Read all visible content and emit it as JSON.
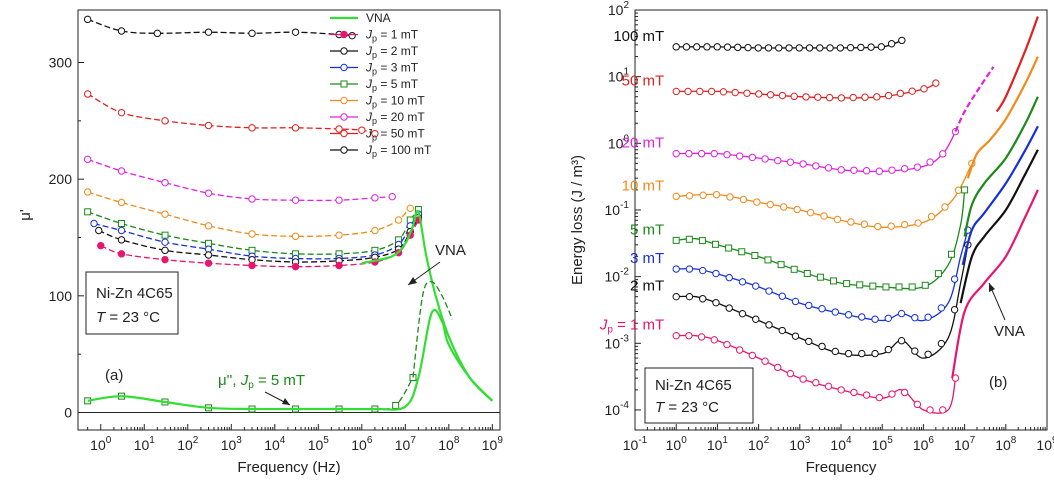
{
  "chart_data": [
    {
      "type": "line",
      "panel_label": "(a)",
      "xlabel": "Frequency (Hz)",
      "ylabel": "μ'",
      "xscale": "log",
      "xlim": [
        0.3,
        1500000000
      ],
      "ylim": [
        -15,
        345
      ],
      "x_ticks": [
        1,
        10,
        100,
        1000,
        10000,
        100000,
        1000000,
        10000000,
        100000000,
        1000000000
      ],
      "x_tick_labels": [
        {
          "base": "10",
          "exp": "0"
        },
        {
          "base": "10",
          "exp": "1"
        },
        {
          "base": "10",
          "exp": "2"
        },
        {
          "base": "10",
          "exp": "3"
        },
        {
          "base": "10",
          "exp": "4"
        },
        {
          "base": "10",
          "exp": "5"
        },
        {
          "base": "10",
          "exp": "6"
        },
        {
          "base": "10",
          "exp": "7"
        },
        {
          "base": "10",
          "exp": "8"
        },
        {
          "base": "10",
          "exp": "9"
        }
      ],
      "y_ticks": [
        0,
        100,
        200,
        300
      ],
      "y_tick_labels": [
        "0",
        "100",
        "200",
        "300"
      ],
      "legend": {
        "position": "top-right",
        "entries": [
          {
            "pre": "VNA",
            "sub": "",
            "post": "",
            "color": "#33dd33",
            "marker": "none"
          },
          {
            "pre": "J",
            "sub": "p",
            "post": " = 1 mT",
            "color": "#e8156f",
            "marker": "filled"
          },
          {
            "pre": "J",
            "sub": "p",
            "post": " = 2 mT",
            "color": "#111111",
            "marker": "open"
          },
          {
            "pre": "J",
            "sub": "p",
            "post": " = 3 mT",
            "color": "#1530d8",
            "marker": "open"
          },
          {
            "pre": "J",
            "sub": "p",
            "post": " = 5 mT",
            "color": "#1a8a1a",
            "marker": "square"
          },
          {
            "pre": "J",
            "sub": "p",
            "post": " = 10 mT",
            "color": "#f08a1a",
            "marker": "open"
          },
          {
            "pre": "J",
            "sub": "p",
            "post": " = 20 mT",
            "color": "#e020e0",
            "marker": "open"
          },
          {
            "pre": "J",
            "sub": "p",
            "post": " = 50 mT",
            "color": "#e02020",
            "marker": "open"
          },
          {
            "pre": "J",
            "sub": "p",
            "post": " = 100 mT",
            "color": "#111111",
            "marker": "open"
          }
        ]
      },
      "annotations": {
        "box_line1": "Ni-Zn 4C65",
        "box_T": "T",
        "box_rest": " = 23 °C",
        "vna_label": "VNA",
        "mu2_pre": "μ'', ",
        "mu2_J": "J",
        "mu2_sub": "p",
        "mu2_post": " = 5 mT"
      },
      "series": [
        {
          "legend": "Jp = 100 mT",
          "color": "#111111",
          "marker": "open",
          "x": [
            0.5,
            3,
            20,
            300,
            3000,
            30000,
            300000,
            600000
          ],
          "y": [
            337,
            327,
            325,
            326,
            325,
            326,
            324,
            323
          ]
        },
        {
          "legend": "Jp = 50 mT",
          "color": "#e02020",
          "marker": "open",
          "x": [
            0.5,
            3,
            30,
            300,
            3000,
            30000,
            300000,
            1000000,
            2000000
          ],
          "y": [
            273,
            257,
            250,
            246,
            244,
            244,
            243,
            242,
            239
          ]
        },
        {
          "legend": "Jp = 20 mT",
          "color": "#e020e0",
          "marker": "open",
          "x": [
            0.5,
            3,
            30,
            300,
            3000,
            30000,
            300000,
            2000000,
            5000000
          ],
          "y": [
            217,
            207,
            197,
            188,
            183,
            182,
            182,
            184,
            185
          ]
        },
        {
          "legend": "Jp = 10 mT",
          "color": "#f08a1a",
          "marker": "open",
          "x": [
            0.5,
            3,
            30,
            300,
            3000,
            30000,
            300000,
            2000000,
            7000000,
            13000000,
            20000000
          ],
          "y": [
            189,
            180,
            170,
            160,
            153,
            151,
            152,
            156,
            165,
            175,
            170
          ]
        },
        {
          "legend": "Jp = 5 mT",
          "color": "#1a8a1a",
          "marker": "square",
          "x": [
            0.5,
            3,
            30,
            300,
            3000,
            30000,
            300000,
            2000000,
            7000000,
            13000000,
            20000000
          ],
          "y": [
            172,
            162,
            152,
            145,
            139,
            136,
            136,
            139,
            148,
            165,
            174
          ]
        },
        {
          "legend": "Jp = 3 mT",
          "color": "#1530d8",
          "marker": "open",
          "x": [
            0.7,
            3,
            30,
            300,
            3000,
            30000,
            300000,
            2000000,
            7000000,
            13000000,
            20000000
          ],
          "y": [
            162,
            156,
            146,
            140,
            134,
            132,
            132,
            135,
            144,
            160,
            170
          ]
        },
        {
          "legend": "Jp = 2 mT",
          "color": "#111111",
          "marker": "open",
          "x": [
            0.9,
            3,
            30,
            300,
            3000,
            30000,
            300000,
            2000000,
            7000000,
            13000000,
            20000000
          ],
          "y": [
            156,
            148,
            139,
            135,
            131,
            129,
            130,
            133,
            140,
            155,
            167
          ]
        },
        {
          "legend": "Jp = 1 mT",
          "color": "#e8156f",
          "marker": "filled",
          "x": [
            1,
            3,
            30,
            300,
            3000,
            30000,
            300000,
            2000000,
            7000000,
            13000000,
            20000000
          ],
          "y": [
            143,
            136,
            131,
            128,
            126,
            125,
            126,
            129,
            137,
            152,
            165
          ]
        },
        {
          "legend": "VNA",
          "color": "#33dd33",
          "marker": "none",
          "x": [
            1000000,
            5000000,
            10000000,
            15000000,
            20000000,
            30000000,
            50000000,
            100000000,
            300000000,
            1000000000
          ],
          "y": [
            128,
            134,
            145,
            160,
            172,
            135,
            100,
            65,
            30,
            10
          ]
        },
        {
          "legend": "Jp = 5 mT (μ'')",
          "color": "#1a8a1a",
          "marker": "square",
          "x": [
            0.5,
            3,
            30,
            300,
            3000,
            30000,
            300000,
            2000000,
            6000000,
            15000000
          ],
          "y": [
            10,
            14,
            9,
            4,
            3,
            3,
            3,
            3,
            6,
            30
          ]
        },
        {
          "legend": "VNA (μ'')",
          "color": "#33dd33",
          "marker": "none",
          "x": [
            0.5,
            3,
            30,
            300,
            3000,
            30000,
            300000,
            2000000,
            10000000,
            20000000,
            40000000,
            70000000,
            100000000,
            300000000,
            1000000000
          ],
          "y": [
            10,
            14,
            9,
            4,
            3,
            3,
            3,
            3,
            5,
            30,
            85,
            78,
            58,
            30,
            10
          ]
        },
        {
          "legend": "Jp = 1 mT (μ'' dashed)",
          "color": "#1a8a1a",
          "marker": "none",
          "x": [
            15000000,
            25000000,
            40000000,
            70000000,
            120000000
          ],
          "y": [
            30,
            100,
            112,
            100,
            80
          ]
        }
      ]
    },
    {
      "type": "line",
      "panel_label": "(b)",
      "xlabel": "Frequency",
      "ylabel": "Energy loss (J / m³)",
      "xscale": "log",
      "yscale": "log",
      "xlim": [
        0.1,
        1000000000
      ],
      "ylim": [
        5e-05,
        100
      ],
      "x_tick_labels": [
        {
          "base": "10",
          "exp": "-1"
        },
        {
          "base": "10",
          "exp": "0"
        },
        {
          "base": "10",
          "exp": "1"
        },
        {
          "base": "10",
          "exp": "2"
        },
        {
          "base": "10",
          "exp": "3"
        },
        {
          "base": "10",
          "exp": "4"
        },
        {
          "base": "10",
          "exp": "5"
        },
        {
          "base": "10",
          "exp": "6"
        },
        {
          "base": "10",
          "exp": "7"
        },
        {
          "base": "10",
          "exp": "8"
        },
        {
          "base": "10",
          "exp": "9"
        }
      ],
      "y_tick_labels": [
        {
          "base": "10",
          "exp": "-4"
        },
        {
          "base": "10",
          "exp": "-3"
        },
        {
          "base": "10",
          "exp": "-2"
        },
        {
          "base": "10",
          "exp": "-1"
        },
        {
          "base": "10",
          "exp": "0"
        },
        {
          "base": "10",
          "exp": "1"
        },
        {
          "base": "10",
          "exp": "2"
        }
      ],
      "annotations": {
        "box_line1": "Ni-Zn 4C65",
        "box_T": "T",
        "box_rest": " = 23 °C",
        "vna_label": "VNA"
      },
      "series": [
        {
          "label": "100 mT",
          "label_sub": "",
          "label_pre": "",
          "color": "#111111",
          "x": [
            1,
            10,
            100,
            1000,
            10000,
            100000,
            300000
          ],
          "y": [
            28,
            28,
            27,
            27,
            27,
            28,
            35
          ]
        },
        {
          "label": "50 mT",
          "label_sub": "",
          "label_pre": "",
          "color": "#e02020",
          "x": [
            1,
            10,
            100,
            1000,
            10000,
            100000,
            1000000,
            2000000
          ],
          "y": [
            6,
            6,
            5.5,
            5,
            4.8,
            5,
            6.5,
            8
          ]
        },
        {
          "label": "20 mT",
          "label_sub": "",
          "label_pre": "",
          "color": "#e020e0",
          "x": [
            1,
            10,
            100,
            1000,
            10000,
            100000,
            1000000,
            3000000,
            6000000
          ],
          "y": [
            0.7,
            0.7,
            0.6,
            0.5,
            0.4,
            0.38,
            0.45,
            0.7,
            1.5
          ]
        },
        {
          "label": "10 mT",
          "label_sub": "",
          "label_pre": "",
          "color": "#f08a1a",
          "x": [
            1,
            10,
            100,
            1000,
            10000,
            100000,
            1000000,
            4000000,
            8000000,
            15000000
          ],
          "y": [
            0.16,
            0.17,
            0.13,
            0.1,
            0.07,
            0.055,
            0.065,
            0.12,
            0.22,
            0.5
          ]
        },
        {
          "label": "5 mT",
          "label_sub": "",
          "label_pre": "",
          "color": "#1a8a1a",
          "x": [
            1,
            3,
            10,
            100,
            1000,
            10000,
            100000,
            1000000,
            4000000,
            8000000,
            10000000
          ],
          "y": [
            0.035,
            0.037,
            0.03,
            0.02,
            0.012,
            0.008,
            0.007,
            0.007,
            0.015,
            0.06,
            0.2
          ]
        },
        {
          "label": "3 mT",
          "label_sub": "",
          "label_pre": "",
          "color": "#1530d8",
          "x": [
            1,
            3,
            10,
            100,
            1000,
            10000,
            100000,
            300000,
            1000000,
            4000000,
            8000000,
            12000000
          ],
          "y": [
            0.013,
            0.013,
            0.011,
            0.007,
            0.004,
            0.0028,
            0.0022,
            0.0028,
            0.0022,
            0.004,
            0.02,
            0.05
          ]
        },
        {
          "label": "2 mT",
          "label_sub": "",
          "label_pre": "",
          "color": "#111111",
          "x": [
            1,
            3,
            10,
            100,
            1000,
            10000,
            100000,
            300000,
            1000000,
            4000000,
            8000000,
            12000000
          ],
          "y": [
            0.005,
            0.005,
            0.004,
            0.0022,
            0.0012,
            0.0007,
            0.0007,
            0.0011,
            0.0006,
            0.0012,
            0.008,
            0.03
          ]
        },
        {
          "label": "= 1 mT",
          "label_sub": "p",
          "label_pre": "J",
          "color": "#e8156f",
          "x": [
            1,
            3,
            10,
            100,
            1000,
            10000,
            100000,
            300000,
            1000000,
            4000000,
            6000000
          ],
          "y": [
            0.0013,
            0.0013,
            0.0011,
            0.0006,
            0.0003,
            0.0002,
            0.00015,
            0.0002,
            0.0001,
            0.0001,
            0.0003
          ]
        },
        {
          "label": "",
          "color": "#e8156f",
          "dashed": false,
          "x": [
            5000000,
            10000000,
            30000000,
            100000000,
            300000000,
            600000000
          ],
          "y": [
            0.0003,
            0.003,
            0.008,
            0.02,
            0.08,
            0.2
          ]
        },
        {
          "label": "",
          "color": "#111111",
          "dashed": false,
          "x": [
            8000000,
            15000000,
            30000000,
            100000000,
            300000000,
            600000000
          ],
          "y": [
            0.004,
            0.02,
            0.04,
            0.1,
            0.35,
            0.8
          ]
        },
        {
          "label": "",
          "color": "#1530d8",
          "dashed": false,
          "x": [
            9000000,
            15000000,
            30000000,
            100000000,
            300000000,
            600000000
          ],
          "y": [
            0.015,
            0.05,
            0.09,
            0.25,
            0.8,
            1.8
          ]
        },
        {
          "label": "",
          "color": "#1a8a1a",
          "dashed": false,
          "x": [
            10000000,
            15000000,
            30000000,
            100000000,
            300000000,
            600000000
          ],
          "y": [
            0.04,
            0.12,
            0.25,
            0.6,
            2,
            5
          ]
        },
        {
          "label": "",
          "color": "#f08a1a",
          "dashed": false,
          "x": [
            12000000,
            20000000,
            40000000,
            100000000,
            300000000,
            600000000
          ],
          "y": [
            0.3,
            0.7,
            1.1,
            2.3,
            8,
            20
          ]
        },
        {
          "label": "",
          "color": "#e02020",
          "dashed": false,
          "x": [
            60000000,
            100000000,
            300000000,
            600000000
          ],
          "y": [
            3,
            5,
            25,
            80
          ]
        },
        {
          "label": "",
          "color": "#e020e0",
          "dashed": true,
          "x": [
            6000000,
            10000000,
            20000000,
            50000000
          ],
          "y": [
            1.5,
            3,
            6,
            14
          ]
        }
      ]
    }
  ]
}
